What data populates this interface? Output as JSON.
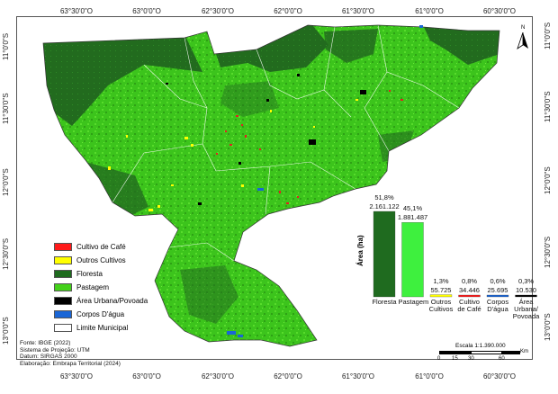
{
  "legend": {
    "items": [
      {
        "label": "Cultivo de Café",
        "color": "#ff1a1a"
      },
      {
        "label": "Outros Cultivos",
        "color": "#ffff00"
      },
      {
        "label": "Floresta",
        "color": "#1f6b1f"
      },
      {
        "label": "Pastagem",
        "color": "#44d11a"
      },
      {
        "label": "Área Urbana/Povoada",
        "color": "#000000"
      },
      {
        "label": "Corpos D'água",
        "color": "#1a66d6"
      },
      {
        "label": "Limite Municipal",
        "color": "#ffffff"
      }
    ]
  },
  "axes": {
    "lat_left": [
      "11°0'0\"S",
      "11°30'0\"S",
      "12°0'0\"S",
      "12°30'0\"S",
      "13°0'0\"S"
    ],
    "lat_right": [
      "11°0'0\"S",
      "11°30'0\"S",
      "12°0'0\"S",
      "12°30'0\"S",
      "13°0'0\"S"
    ],
    "lon_bottom": [
      "63°30'0\"O",
      "63°0'0\"O",
      "62°30'0\"O",
      "62°0'0\"O",
      "61°30'0\"O",
      "61°0'0\"O",
      "60°30'0\"O"
    ],
    "lon_top": [
      "63°30'0\"O",
      "63°0'0\"O",
      "62°30'0\"O",
      "62°0'0\"O",
      "61°30'0\"O",
      "61°0'0\"O",
      "60°30'0\"O"
    ]
  },
  "north_label": "N",
  "chart_data": {
    "type": "bar",
    "ylabel": "Área (ha)",
    "categories": [
      "Floresta",
      "Pastagem",
      "Outros Cultivos",
      "Cultivo de Café",
      "Corpos D'água",
      "Área Urbana/ Povoada"
    ],
    "values": [
      2161122,
      1881487,
      55725,
      34446,
      25695,
      10530
    ],
    "value_labels": [
      "2.161.122",
      "1.881.487",
      "55.725",
      "34.446",
      "25.695",
      "10.530"
    ],
    "percent_labels": [
      "51,8%",
      "45,1%",
      "1,3%",
      "0,8%",
      "0,6%",
      "0,3%"
    ],
    "colors": [
      "#1f6b1f",
      "#3ef03e",
      "#ffff00",
      "#ff1a1a",
      "#1a66d6",
      "#000000"
    ],
    "ylim": [
      0,
      2161122
    ]
  },
  "credits": {
    "lines": [
      "Fonte: IBGE (2022)",
      "Sistema de Projeção: UTM",
      "Datum: SIRGAS 2000",
      "Elaboração: Embrapa Territorial (2024)"
    ]
  },
  "scale": {
    "title": "Escala 1:1.390.000",
    "ticks": [
      "0",
      "15",
      "30",
      "60"
    ],
    "unit": "Km"
  }
}
